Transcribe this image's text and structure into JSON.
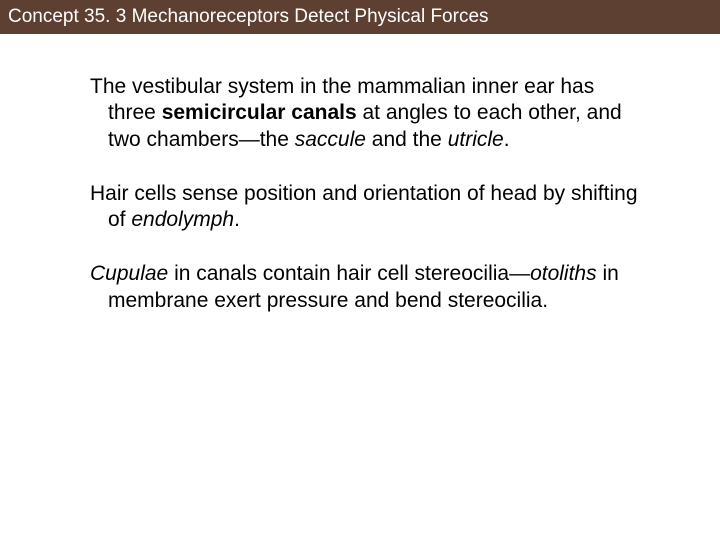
{
  "header": {
    "title": "Concept 35. 3 Mechanoreceptors Detect Physical Forces",
    "background_color": "#5d4031",
    "text_color": "#ffffff",
    "font_size": 19
  },
  "body": {
    "background_color": "#ffffff",
    "text_color": "#000000",
    "font_size": 21,
    "paragraphs": [
      {
        "segments": [
          {
            "text": "The vestibular system in the mammalian inner ear has three ",
            "style": "normal"
          },
          {
            "text": "semicircular canals",
            "style": "bold"
          },
          {
            "text": " at angles to each other, and two chambers—the ",
            "style": "normal"
          },
          {
            "text": "saccule",
            "style": "italic"
          },
          {
            "text": " and the ",
            "style": "normal"
          },
          {
            "text": "utricle",
            "style": "italic"
          },
          {
            "text": ".",
            "style": "normal"
          }
        ]
      },
      {
        "segments": [
          {
            "text": "Hair cells sense position and orientation of head by shifting of ",
            "style": "normal"
          },
          {
            "text": "endolymph",
            "style": "italic"
          },
          {
            "text": ".",
            "style": "normal"
          }
        ]
      },
      {
        "segments": [
          {
            "text": "Cupulae",
            "style": "italic"
          },
          {
            "text": " in canals contain hair cell stereocilia—",
            "style": "normal"
          },
          {
            "text": "otoliths",
            "style": "italic"
          },
          {
            "text": " in membrane exert pressure and bend stereocilia.",
            "style": "normal"
          }
        ]
      }
    ]
  }
}
